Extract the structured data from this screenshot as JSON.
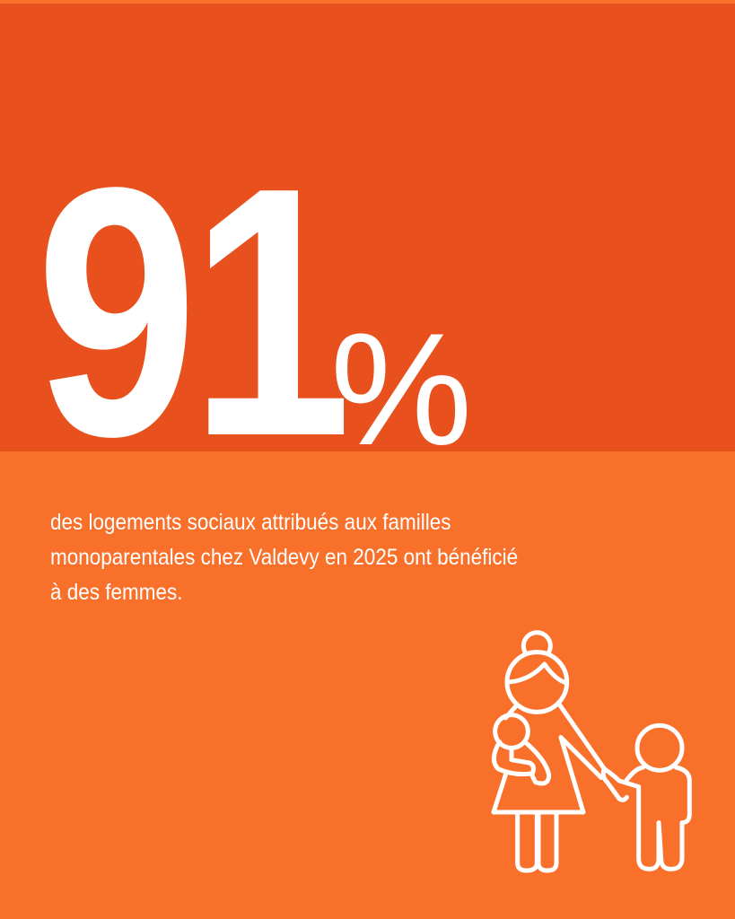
{
  "stat": {
    "value": "91",
    "unit": "%"
  },
  "description": "des logements sociaux attribués aux familles monoparentales chez Valdevy en 2025 ont bénéficié à des femmes.",
  "description_lines": [
    "des logements sociaux attribués aux familles",
    "monoparentales chez Valdevy en 2025 ont bénéficié",
    "à des femmes."
  ],
  "colors": {
    "top_band": "#E8501D",
    "background": "#F9702B",
    "text": "#FFFFFF"
  },
  "icon": "mother-with-baby-and-child-icon"
}
